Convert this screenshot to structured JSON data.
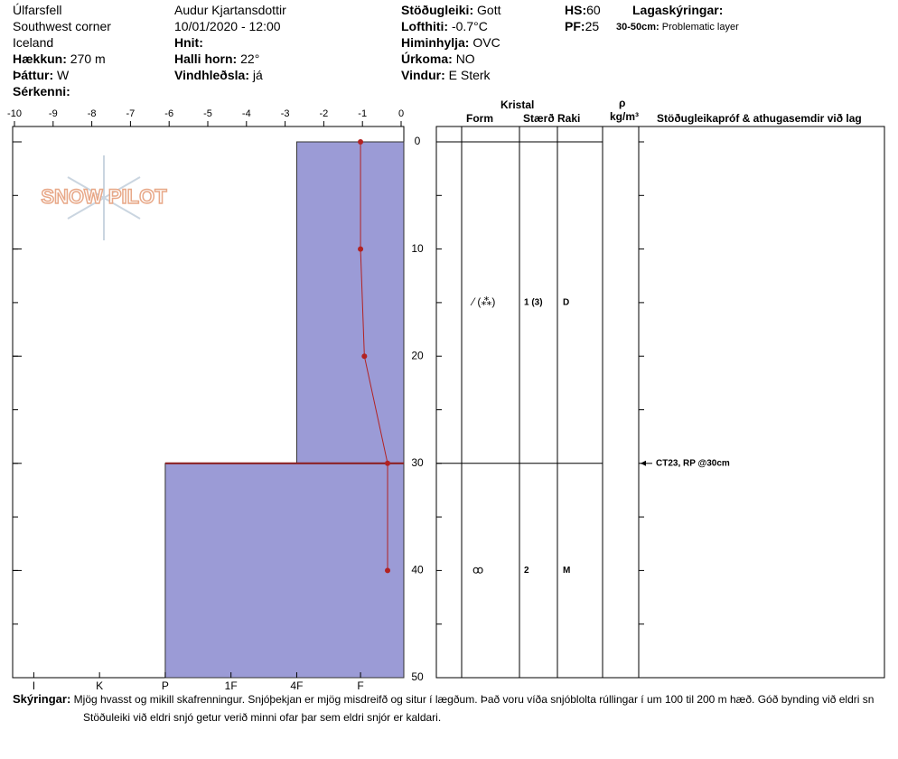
{
  "header": {
    "columns": [
      [
        {
          "value": "Úlfarsfell"
        },
        {
          "value": "Southwest corner"
        },
        {
          "value": "Iceland"
        },
        {
          "label": "Hækkun:",
          "value": "270 m"
        },
        {
          "label": "Þáttur:",
          "value": "W"
        },
        {
          "label": "Sérkenni:"
        }
      ],
      [
        {
          "value": "Audur Kjartansdottir"
        },
        {
          "value": "10/01/2020 - 12:00"
        },
        {
          "label": "Hnit:"
        },
        {
          "label": "Halli horn:",
          "value": "22°"
        },
        {
          "label": "Vindhleðsla:",
          "value": "já"
        }
      ],
      [
        {
          "label": "Stöðugleiki:",
          "value": "Gott"
        },
        {
          "label": "Lofthiti:",
          "value": "-0.7°C"
        },
        {
          "label": "Himinhylja:",
          "value": "OVC"
        },
        {
          "label": "Úrkoma:",
          "value": "NO"
        },
        {
          "label": "Vindur:",
          "value": "E Sterk"
        }
      ],
      [
        {
          "label": "HS:",
          "value": "60"
        },
        {
          "label": "PF:",
          "value": "25"
        }
      ]
    ],
    "legend_title": "Lagaskýringar:",
    "legend_items": [
      {
        "label": "30-50cm:",
        "value": "Problematic layer"
      }
    ]
  },
  "logo": "SNOW PILOT",
  "chart_data": {
    "type": "snow_profile",
    "xlim": [
      -10,
      0
    ],
    "xticks": [
      -10,
      -9,
      -8,
      -7,
      -6,
      -5,
      -4,
      -3,
      -2,
      -1,
      0
    ],
    "ylim": [
      0,
      50
    ],
    "yticks": [
      0,
      10,
      20,
      30,
      40,
      50
    ],
    "hardness_ticks": [
      {
        "value": -9.5,
        "label": "I"
      },
      {
        "value": -7.8,
        "label": "K"
      },
      {
        "value": -6.1,
        "label": "P"
      },
      {
        "value": -4.4,
        "label": "1F"
      },
      {
        "value": -2.7,
        "label": "4F"
      },
      {
        "value": -1.05,
        "label": "F"
      }
    ],
    "layer_color": "#9b9bd6",
    "layers": [
      {
        "top": 0,
        "bottom": 30,
        "hardness": -2.7,
        "form": "⁄ (⁂)",
        "size": "1 (3)",
        "moisture": "D"
      },
      {
        "top": 30,
        "bottom": 50,
        "hardness": -6.1,
        "form": "ꝏ",
        "size": "2",
        "moisture": "M"
      }
    ],
    "temperature": {
      "color": "#b22222",
      "depth": [
        0,
        10,
        20,
        30,
        40
      ],
      "values": [
        -1.05,
        -1.05,
        -0.95,
        -0.35,
        -0.35
      ]
    },
    "tests": [
      {
        "depth": 30,
        "label": "CT23, RP @30cm"
      }
    ],
    "table_headers": {
      "crystal": "Kristal",
      "form": "Form",
      "size": "Stærð",
      "moisture": "Raki",
      "density": "ρ",
      "density_unit": "kg/m³",
      "comments": "Stöðugleikapróf & athugasemdir við lag"
    }
  },
  "footer": {
    "label": "Skýringar:",
    "lines": [
      "Mjög hvasst og mikill skafrenningur. Snjóþekjan er mjög misdreifð og situr í lægðum. Það voru víða snjóblolta rúllingar í um 100 til 200 m hæð.  Góð bynding við eldri sn",
      "Stöðuleiki við eldri snjó getur verið minni ofar þar sem eldri snjór er kaldari."
    ]
  }
}
